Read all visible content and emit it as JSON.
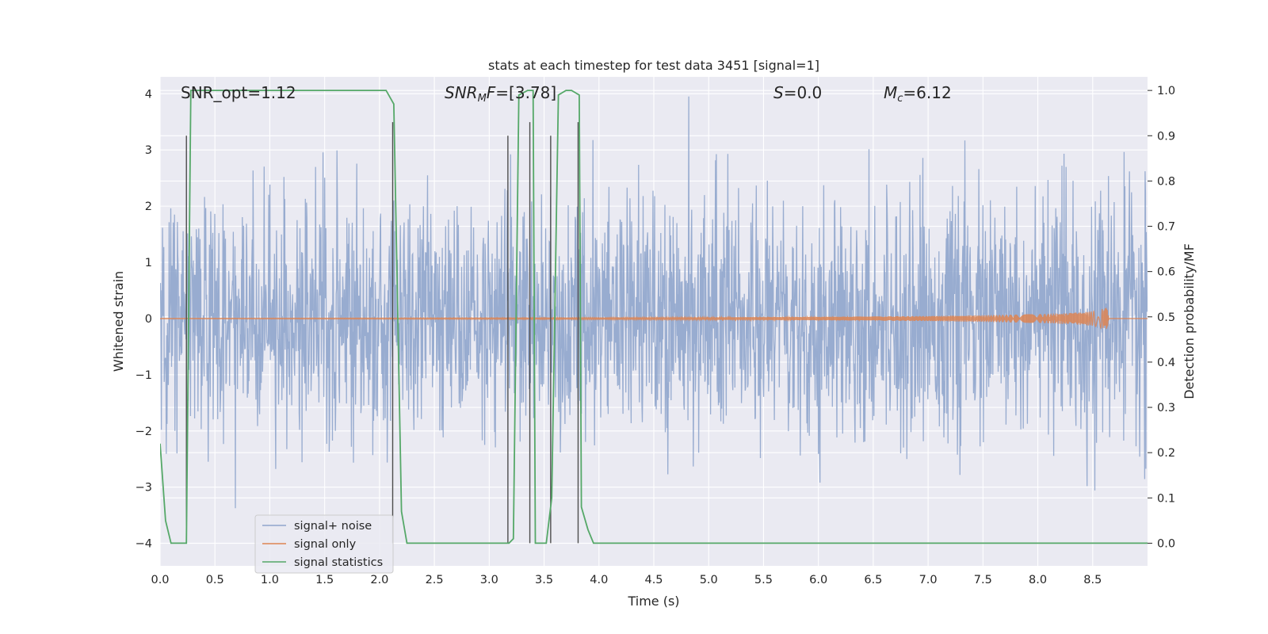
{
  "chart_data": {
    "type": "line",
    "title": "stats at each timestep for test data 3451 [signal=1]",
    "xlabel": "Time (s)",
    "ylabel_left": "Whitened strain",
    "ylabel_right": "Detection probability/MF",
    "xlim": [
      0.0,
      9.0
    ],
    "ylim_left": [
      -4.4,
      4.3
    ],
    "ylim_right": [
      -0.05,
      1.03
    ],
    "x_ticks": [
      "0.0",
      "0.5",
      "1.0",
      "1.5",
      "2.0",
      "2.5",
      "3.0",
      "3.5",
      "4.0",
      "4.5",
      "5.0",
      "5.5",
      "6.0",
      "6.5",
      "7.0",
      "7.5",
      "8.0",
      "8.5"
    ],
    "x_tick_values": [
      0.0,
      0.5,
      1.0,
      1.5,
      2.0,
      2.5,
      3.0,
      3.5,
      4.0,
      4.5,
      5.0,
      5.5,
      6.0,
      6.5,
      7.0,
      7.5,
      8.0,
      8.5
    ],
    "y_ticks_left": [
      "−4",
      "−3",
      "−2",
      "−1",
      "0",
      "1",
      "2",
      "3",
      "4"
    ],
    "y_tick_values_left": [
      -4,
      -3,
      -2,
      -1,
      0,
      1,
      2,
      3,
      4
    ],
    "y_ticks_right": [
      "0.0",
      "0.1",
      "0.2",
      "0.3",
      "0.4",
      "0.5",
      "0.6",
      "0.7",
      "0.8",
      "0.9",
      "1.0"
    ],
    "y_tick_values_right": [
      0.0,
      0.1,
      0.2,
      0.3,
      0.4,
      0.5,
      0.6,
      0.7,
      0.8,
      0.9,
      1.0
    ],
    "grid": true,
    "legend_position": "bottom-left",
    "annotations": {
      "snr_opt": "SNR_opt=1.12",
      "snr_mf_main": "SNR",
      "snr_mf_sub": "M",
      "snr_mf_rest": "F=[3.78]",
      "s_main": "S",
      "s_rest": "=0.0",
      "mc_main": "M",
      "mc_sub": "c",
      "mc_rest": "=6.12"
    },
    "series": [
      {
        "name": "signal+ noise",
        "color": "#8fa5cc",
        "axis": "left",
        "description": "whitened noise, approx. amplitude range -4 to 4"
      },
      {
        "name": "signal only",
        "color": "#dd8452",
        "axis": "left",
        "envelope": {
          "x": [
            0.0,
            2.0,
            4.0,
            5.0,
            6.0,
            7.0,
            7.5,
            8.0,
            8.3,
            8.5,
            8.6,
            8.63,
            8.65
          ],
          "amp": [
            0.005,
            0.01,
            0.015,
            0.02,
            0.03,
            0.045,
            0.06,
            0.08,
            0.1,
            0.13,
            0.18,
            0.2,
            0.0
          ]
        }
      },
      {
        "name": "signal statistics",
        "color": "#55a868",
        "axis": "right",
        "x": [
          0.0,
          0.05,
          0.1,
          0.2,
          0.24,
          0.28,
          0.3,
          0.4,
          0.8,
          1.2,
          1.6,
          2.0,
          2.06,
          2.13,
          2.2,
          2.25,
          2.5,
          3.0,
          3.18,
          3.22,
          3.27,
          3.35,
          3.4,
          3.42,
          3.47,
          3.52,
          3.57,
          3.63,
          3.7,
          3.75,
          3.82,
          3.84,
          3.9,
          3.95,
          4.0,
          5.0,
          6.0,
          7.0,
          8.0,
          9.0
        ],
        "y": [
          0.22,
          0.05,
          0.0,
          0.0,
          0.0,
          1.0,
          1.0,
          1.0,
          1.0,
          1.0,
          1.0,
          1.0,
          1.0,
          0.97,
          0.07,
          0.0,
          0.0,
          0.0,
          0.0,
          0.01,
          0.99,
          1.0,
          1.0,
          0.0,
          0.0,
          0.0,
          0.1,
          0.99,
          1.0,
          1.0,
          0.99,
          0.08,
          0.03,
          0.0,
          0.0,
          0.0,
          0.0,
          0.0,
          0.0,
          0.0
        ]
      }
    ],
    "vertical_lines": {
      "color": "#4d4d4d",
      "x": [
        0.24,
        2.12,
        3.17,
        3.37,
        3.56,
        3.81
      ],
      "y_top": [
        0.9,
        0.93,
        0.9,
        0.93,
        0.9,
        0.93
      ],
      "y_bottom": [
        0.0,
        0.0,
        0.0,
        0.0,
        0.0,
        0.0
      ]
    }
  }
}
